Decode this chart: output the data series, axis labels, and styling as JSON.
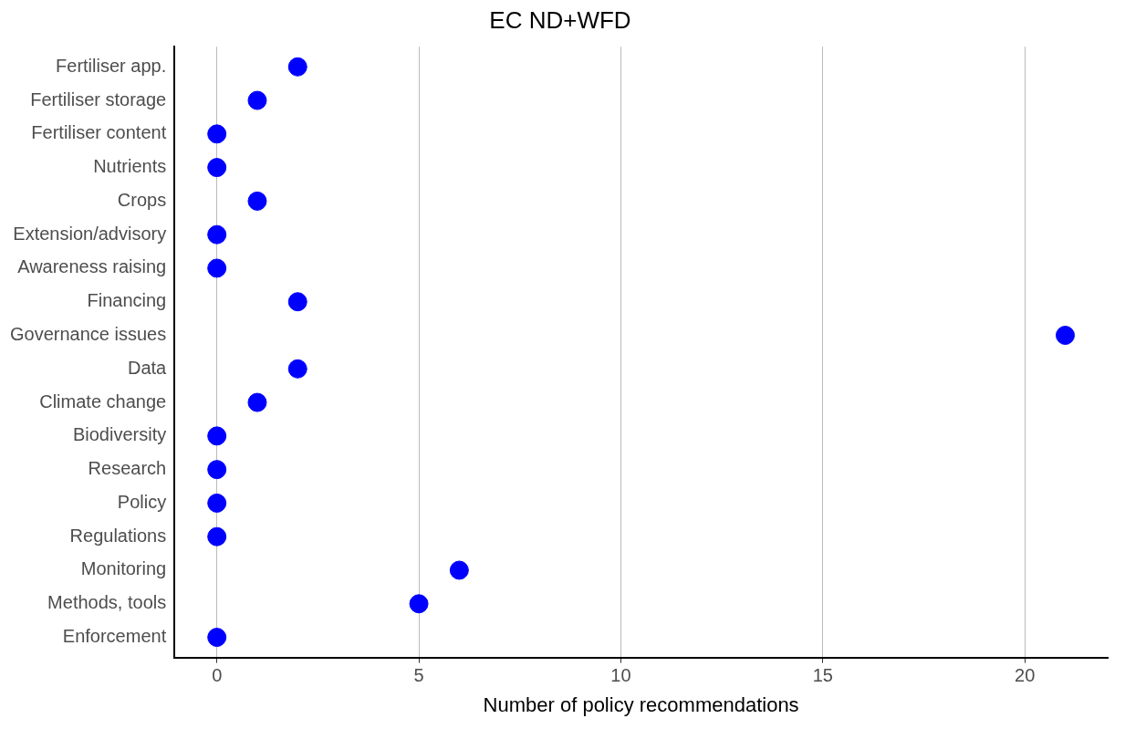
{
  "chart_data": {
    "type": "scatter",
    "title": "EC ND+WFD",
    "xlabel": "Number of policy recommendations",
    "orientation": "horizontal",
    "categories": [
      "Fertiliser app.",
      "Fertiliser storage",
      "Fertiliser content",
      "Nutrients",
      "Crops",
      "Extension/advisory",
      "Awareness raising",
      "Financing",
      "Governance issues",
      "Data",
      "Climate change",
      "Biodiversity",
      "Research",
      "Policy",
      "Regulations",
      "Monitoring",
      "Methods, tools",
      "Enforcement"
    ],
    "values": [
      2,
      1,
      0,
      0,
      1,
      0,
      0,
      2,
      21,
      2,
      1,
      0,
      0,
      0,
      0,
      6,
      5,
      0
    ],
    "color": "#0000ff",
    "marker": "circle",
    "xlim": [
      -1.05,
      22.05
    ],
    "xticks": [
      0,
      5,
      10,
      15,
      20
    ],
    "grid": "x",
    "legend": false
  }
}
